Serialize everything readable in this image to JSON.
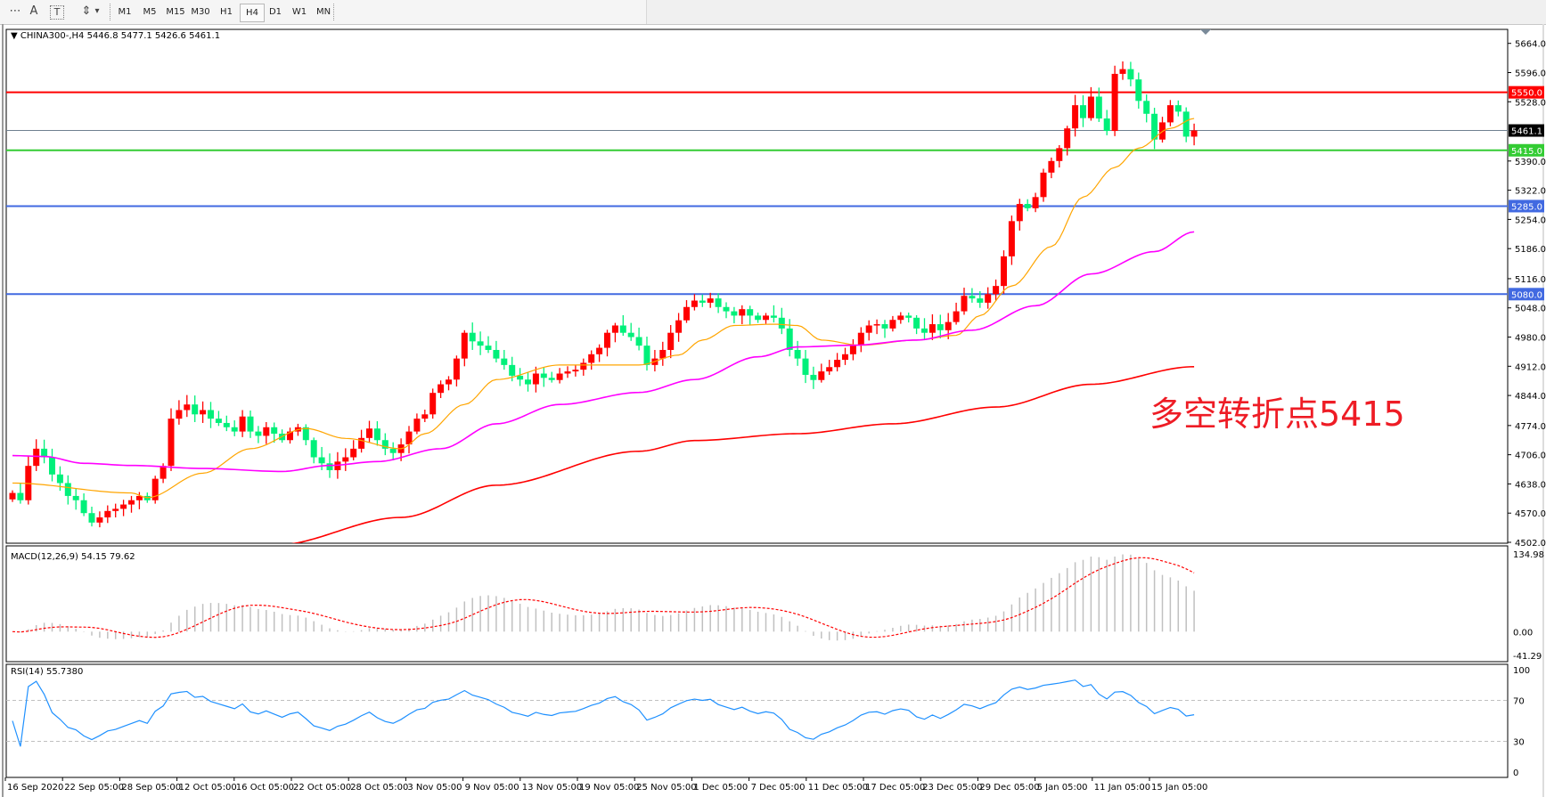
{
  "toolbar": {
    "tools": [
      {
        "name": "period-separator-icon",
        "glyph": "⋯"
      },
      {
        "name": "text-tool-icon",
        "glyph": "A"
      },
      {
        "name": "text-label-tool-icon",
        "glyph": "T"
      },
      {
        "name": "arrows-tool-icon",
        "glyph": "⇕"
      }
    ],
    "dropdown_glyph": "▾",
    "timeframes": [
      "M1",
      "M5",
      "M15",
      "M30",
      "H1",
      "H4",
      "D1",
      "W1",
      "MN"
    ],
    "selected_timeframe": "H4"
  },
  "chart_header": "CHINA300-,H4  5446.8 5477.1 5426.6 5461.1",
  "annotation": "多空转折点5415",
  "colors": {
    "bull": "#00f07a",
    "bear": "#ff0000",
    "ma_fast": "#ffa500",
    "ma_mid": "#ff00ff",
    "ma_slow": "#ff0000",
    "resistance": "#ff0000",
    "pivot": "#33cc33",
    "support": "#4169e1",
    "bid": "#708090",
    "macd_hist": "#c0c0c0",
    "macd_signal": "#ff0000",
    "rsi": "#1e90ff",
    "annotation": "#ee1c25"
  },
  "chart_data": {
    "type": "candlestick",
    "symbol": "CHINA300-",
    "timeframe": "H4",
    "last_bar": {
      "open": 5446.8,
      "high": 5477.1,
      "low": 5426.6,
      "close": 5461.1
    },
    "ylim": [
      4502.0,
      5664.0
    ],
    "y_ticks": [
      "5664.0",
      "5596.0",
      "5528.0",
      "5390.0",
      "5322.0",
      "5254.0",
      "5186.0",
      "5116.0",
      "5048.0",
      "4980.0",
      "4912.0",
      "4844.0",
      "4774.0",
      "4706.0",
      "4638.0",
      "4570.0",
      "4502.0"
    ],
    "x_ticks": [
      "16 Sep 2020",
      "22 Sep 05:00",
      "28 Sep 05:00",
      "12 Oct 05:00",
      "16 Oct 05:00",
      "22 Oct 05:00",
      "28 Oct 05:00",
      "3 Nov 05:00",
      "9 Nov 05:00",
      "13 Nov 05:00",
      "19 Nov 05:00",
      "25 Nov 05:00",
      "1 Dec 05:00",
      "7 Dec 05:00",
      "11 Dec 05:00",
      "17 Dec 05:00",
      "23 Dec 05:00",
      "29 Dec 05:00",
      "5 Jan 05:00",
      "11 Jan 05:00",
      "15 Jan 05:00"
    ],
    "closes": [
      4617,
      4600,
      4680,
      4720,
      4700,
      4660,
      4640,
      4610,
      4600,
      4570,
      4548,
      4560,
      4575,
      4580,
      4590,
      4600,
      4610,
      4600,
      4650,
      4680,
      4790,
      4810,
      4823,
      4800,
      4810,
      4790,
      4780,
      4770,
      4760,
      4795,
      4760,
      4750,
      4770,
      4755,
      4740,
      4760,
      4770,
      4740,
      4700,
      4686,
      4670,
      4690,
      4700,
      4720,
      4745,
      4767,
      4740,
      4720,
      4710,
      4730,
      4760,
      4790,
      4800,
      4850,
      4870,
      4881,
      4930,
      4990,
      4970,
      4960,
      4950,
      4930,
      4915,
      4890,
      4881,
      4870,
      4895,
      4885,
      4880,
      4895,
      4900,
      4904,
      4920,
      4940,
      4955,
      4990,
      5007,
      4990,
      4980,
      4960,
      4915,
      4930,
      4950,
      4990,
      5019,
      5050,
      5065,
      5060,
      5070,
      5050,
      5040,
      5030,
      5045,
      5030,
      5020,
      5030,
      5025,
      5000,
      4950,
      4930,
      4892,
      4880,
      4900,
      4910,
      4927,
      4940,
      4961,
      4990,
      5007,
      5010,
      5000,
      5020,
      5030,
      5025,
      5000,
      4990,
      5010,
      4996,
      5015,
      5040,
      5076,
      5070,
      5060,
      5080,
      5099,
      5168,
      5250,
      5290,
      5280,
      5306,
      5363,
      5390,
      5420,
      5466,
      5520,
      5490,
      5540,
      5489,
      5460,
      5593,
      5604,
      5580,
      5530,
      5500,
      5440,
      5480,
      5520,
      5505,
      5446.8,
      5461.1
    ],
    "moving_averages": [
      {
        "color": "#ffa500",
        "points": [
          [
            0,
            4640
          ],
          [
            15,
            4617
          ],
          [
            17,
            4606
          ],
          [
            24,
            4663
          ],
          [
            30,
            4720
          ],
          [
            37,
            4767
          ],
          [
            42,
            4744
          ],
          [
            49,
            4720
          ],
          [
            52,
            4755
          ],
          [
            57,
            4823
          ],
          [
            61,
            4881
          ],
          [
            69,
            4915
          ],
          [
            79,
            4915
          ],
          [
            84,
            4938
          ],
          [
            87,
            4973
          ],
          [
            91,
            5007
          ],
          [
            96,
            5010
          ],
          [
            99,
            5007
          ],
          [
            102,
            4973
          ],
          [
            107,
            4961
          ],
          [
            114,
            4973
          ],
          [
            119,
            4984
          ],
          [
            122,
            5030
          ],
          [
            126,
            5099
          ],
          [
            131,
            5191
          ],
          [
            135,
            5306
          ],
          [
            139,
            5375
          ],
          [
            142,
            5420
          ],
          [
            146,
            5466
          ],
          [
            149,
            5489
          ]
        ]
      },
      {
        "color": "#ff00ff",
        "points": [
          [
            0,
            4704
          ],
          [
            4,
            4702
          ],
          [
            9,
            4686
          ],
          [
            15,
            4681
          ],
          [
            24,
            4674
          ],
          [
            34,
            4667
          ],
          [
            40,
            4681
          ],
          [
            46,
            4690
          ],
          [
            54,
            4720
          ],
          [
            61,
            4778
          ],
          [
            69,
            4823
          ],
          [
            79,
            4851
          ],
          [
            86,
            4881
          ],
          [
            94,
            4934
          ],
          [
            99,
            4957
          ],
          [
            106,
            4961
          ],
          [
            114,
            4973
          ],
          [
            121,
            4996
          ],
          [
            129,
            5053
          ],
          [
            136,
            5127
          ],
          [
            144,
            5179
          ],
          [
            149,
            5225
          ]
        ]
      },
      {
        "color": "#ff0000",
        "points": [
          [
            33,
            4495
          ],
          [
            49,
            4560
          ],
          [
            61,
            4635
          ],
          [
            79,
            4714
          ],
          [
            86,
            4739
          ],
          [
            99,
            4755
          ],
          [
            111,
            4778
          ],
          [
            124,
            4817
          ],
          [
            136,
            4870
          ],
          [
            149,
            4911
          ]
        ]
      }
    ],
    "horizontal_lines": [
      {
        "value": 5550.0,
        "label": "5550.0",
        "color": "#ff0000"
      },
      {
        "value": 5461.1,
        "label": "5461.1",
        "color": "#708090",
        "badge": "#000000"
      },
      {
        "value": 5415.0,
        "label": "5415.0",
        "color": "#33cc33"
      },
      {
        "value": 5285.0,
        "label": "5285.0",
        "color": "#4169e1"
      },
      {
        "value": 5080.0,
        "label": "5080.0",
        "color": "#4169e1"
      }
    ],
    "macd": {
      "label": "MACD(12,26,9) 54.15 79.62",
      "ylim": [
        -41.29,
        134.98
      ],
      "y_ticks": [
        "134.98",
        "0.00",
        "-41.29"
      ]
    },
    "rsi": {
      "label": "RSI(14) 55.7380",
      "ylim": [
        0,
        100
      ],
      "y_ticks": [
        "100",
        "70",
        "30",
        "0"
      ],
      "levels": [
        70,
        30
      ]
    }
  }
}
